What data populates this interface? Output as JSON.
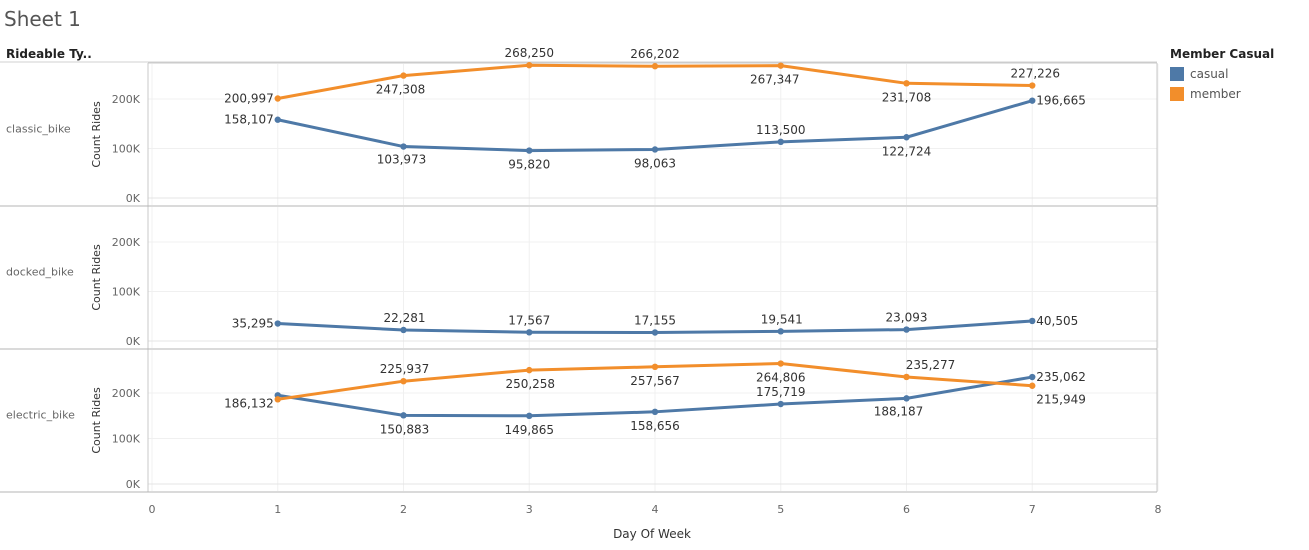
{
  "sheet": {
    "title": "Sheet 1",
    "row_header_title": "Rideable Ty..",
    "legend_title": "Member Casual",
    "legend": [
      {
        "name": "casual",
        "color": "#4e79a7"
      },
      {
        "name": "member",
        "color": "#f28e2b"
      }
    ]
  },
  "chart_data": {
    "type": "line",
    "xlabel": "Day Of Week",
    "ylabel": "Count Rides",
    "xlim": [
      0,
      8
    ],
    "xticks": [
      "0",
      "1",
      "2",
      "3",
      "4",
      "5",
      "6",
      "7",
      "8"
    ],
    "ylim": [
      0,
      250000
    ],
    "yticks": [
      "0K",
      "100K",
      "200K"
    ],
    "grid": true,
    "legend_position": "top-right",
    "panels": [
      {
        "label": "classic_bike",
        "series": [
          {
            "name": "casual",
            "color": "#4e79a7",
            "x": [
              1,
              2,
              3,
              4,
              5,
              6,
              7
            ],
            "values": [
              158107,
              103973,
              95820,
              98063,
              113500,
              122724,
              196665
            ],
            "labels": [
              "158,107",
              "103,973",
              "95,820",
              "98,063",
              "113,500",
              "122,724",
              "196,665"
            ]
          },
          {
            "name": "member",
            "color": "#f28e2b",
            "x": [
              1,
              2,
              3,
              4,
              5,
              6,
              7
            ],
            "values": [
              200997,
              247308,
              268250,
              266202,
              267347,
              231708,
              227226
            ],
            "labels": [
              "200,997",
              "247,308",
              "268,250",
              "266,202",
              "267,347",
              "231,708",
              "227,226"
            ]
          }
        ]
      },
      {
        "label": "docked_bike",
        "series": [
          {
            "name": "casual",
            "color": "#4e79a7",
            "x": [
              1,
              2,
              3,
              4,
              5,
              6,
              7
            ],
            "values": [
              35295,
              22281,
              17567,
              17155,
              19541,
              23093,
              40505
            ],
            "labels": [
              "35,295",
              "22,281",
              "17,567",
              "17,155",
              "19,541",
              "23,093",
              "40,505"
            ]
          }
        ]
      },
      {
        "label": "electric_bike",
        "series": [
          {
            "name": "casual",
            "color": "#4e79a7",
            "x": [
              1,
              2,
              3,
              4,
              5,
              6,
              7
            ],
            "values": [
              195000,
              150883,
              149865,
              158656,
              175719,
              188187,
              235062
            ],
            "labels": [
              "",
              "150,883",
              "149,865",
              "158,656",
              "175,719",
              "188,187",
              "235,062"
            ]
          },
          {
            "name": "member",
            "color": "#f28e2b",
            "x": [
              1,
              2,
              3,
              4,
              5,
              6,
              7
            ],
            "values": [
              186132,
              225937,
              250258,
              257567,
              264806,
              235277,
              215949
            ],
            "labels": [
              "186,132",
              "225,937",
              "250,258",
              "257,567",
              "264,806",
              "235,277",
              "215,949"
            ]
          }
        ]
      }
    ]
  }
}
